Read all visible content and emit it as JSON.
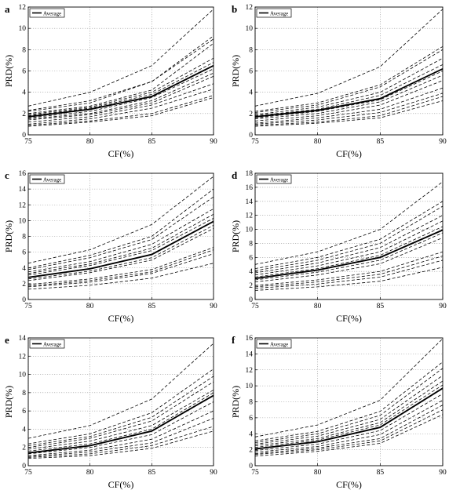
{
  "figure": {
    "panels": [
      {
        "panel_label": "a",
        "chart_data": {
          "type": "line",
          "title": "",
          "xlabel": "CF(%)",
          "ylabel": "PRD(%)",
          "x": [
            75,
            80,
            85,
            90
          ],
          "xticks": [
            "75",
            "80",
            "85",
            "90"
          ],
          "xlim": [
            75,
            90
          ],
          "ylim": [
            0,
            12
          ],
          "yticks": [
            "0",
            "2",
            "4",
            "6",
            "8",
            "10",
            "12"
          ],
          "grid": true,
          "legend": {
            "entries": [
              "Average"
            ],
            "placement": "top-left"
          },
          "average": {
            "name": "Average",
            "values": [
              1.7,
              2.4,
              3.6,
              6.5
            ]
          },
          "records": [
            {
              "values": [
                2.7,
                4.0,
                6.5,
                11.8
              ]
            },
            {
              "values": [
                2.3,
                3.2,
                5.0,
                9.3
              ]
            },
            {
              "values": [
                2.2,
                3.0,
                5.0,
                9.0
              ]
            },
            {
              "values": [
                2.0,
                2.7,
                4.2,
                8.6
              ]
            },
            {
              "values": [
                1.9,
                2.6,
                4.0,
                7.2
              ]
            },
            {
              "values": [
                1.8,
                2.5,
                3.8,
                6.8
              ]
            },
            {
              "values": [
                1.6,
                2.2,
                3.5,
                6.2
              ]
            },
            {
              "values": [
                1.5,
                2.0,
                3.2,
                5.8
              ]
            },
            {
              "values": [
                1.4,
                1.9,
                3.0,
                5.5
              ]
            },
            {
              "values": [
                1.2,
                1.7,
                2.8,
                4.8
              ]
            },
            {
              "values": [
                1.0,
                1.5,
                2.5,
                4.3
              ]
            },
            {
              "values": [
                0.9,
                1.3,
                2.0,
                3.7
              ]
            },
            {
              "values": [
                0.8,
                1.2,
                1.8,
                3.5
              ]
            }
          ]
        }
      },
      {
        "panel_label": "b",
        "chart_data": {
          "type": "line",
          "title": "",
          "xlabel": "CF(%)",
          "ylabel": "PRD(%)",
          "x": [
            75,
            80,
            85,
            90
          ],
          "xticks": [
            "75",
            "80",
            "85",
            "90"
          ],
          "xlim": [
            75,
            90
          ],
          "ylim": [
            0,
            12
          ],
          "yticks": [
            "0",
            "2",
            "4",
            "6",
            "8",
            "10",
            "12"
          ],
          "grid": true,
          "legend": {
            "entries": [
              "Average"
            ],
            "placement": "top-left"
          },
          "average": {
            "name": "Average",
            "values": [
              1.7,
              2.3,
              3.4,
              6.2
            ]
          },
          "records": [
            {
              "values": [
                2.7,
                3.9,
                6.4,
                11.8
              ]
            },
            {
              "values": [
                2.2,
                3.0,
                4.7,
                8.3
              ]
            },
            {
              "values": [
                2.1,
                2.8,
                4.5,
                8.0
              ]
            },
            {
              "values": [
                1.9,
                2.6,
                4.0,
                7.2
              ]
            },
            {
              "values": [
                1.8,
                2.4,
                3.7,
                6.6
              ]
            },
            {
              "values": [
                1.6,
                2.2,
                3.3,
                6.0
              ]
            },
            {
              "values": [
                1.5,
                2.0,
                3.1,
                5.6
              ]
            },
            {
              "values": [
                1.3,
                1.8,
                2.8,
                5.1
              ]
            },
            {
              "values": [
                1.1,
                1.6,
                2.4,
                4.4
              ]
            },
            {
              "values": [
                1.0,
                1.4,
                2.1,
                3.9
              ]
            },
            {
              "values": [
                0.9,
                1.2,
                1.8,
                3.6
              ]
            },
            {
              "values": [
                0.8,
                1.1,
                1.6,
                3.2
              ]
            }
          ]
        }
      },
      {
        "panel_label": "c",
        "chart_data": {
          "type": "line",
          "title": "",
          "xlabel": "CF(%)",
          "ylabel": "PRD(%)",
          "x": [
            75,
            80,
            85,
            90
          ],
          "xticks": [
            "75",
            "80",
            "85",
            "90"
          ],
          "xlim": [
            75,
            90
          ],
          "ylim": [
            0,
            16
          ],
          "yticks": [
            "0",
            "2",
            "4",
            "6",
            "8",
            "10",
            "12",
            "14",
            "16"
          ],
          "grid": true,
          "legend": {
            "entries": [
              "Average"
            ],
            "placement": "top-left"
          },
          "average": {
            "name": "Average",
            "values": [
              2.8,
              3.9,
              5.7,
              9.9
            ]
          },
          "records": [
            {
              "values": [
                4.6,
                6.3,
                9.5,
                15.6
              ]
            },
            {
              "values": [
                4.0,
                5.6,
                8.0,
                14.0
              ]
            },
            {
              "values": [
                3.8,
                5.3,
                7.6,
                13.0
              ]
            },
            {
              "values": [
                3.5,
                4.8,
                7.0,
                11.5
              ]
            },
            {
              "values": [
                3.3,
                4.5,
                6.5,
                10.8
              ]
            },
            {
              "values": [
                3.1,
                4.3,
                6.2,
                10.3
              ]
            },
            {
              "values": [
                2.6,
                3.6,
                5.3,
                9.4
              ]
            },
            {
              "values": [
                2.4,
                3.4,
                5.0,
                9.0
              ]
            },
            {
              "values": [
                1.9,
                2.6,
                3.8,
                6.6
              ]
            },
            {
              "values": [
                1.7,
                2.4,
                3.5,
                6.3
              ]
            },
            {
              "values": [
                1.6,
                2.2,
                3.3,
                5.8
              ]
            },
            {
              "values": [
                1.3,
                1.8,
                2.7,
                4.6
              ]
            }
          ]
        }
      },
      {
        "panel_label": "d",
        "chart_data": {
          "type": "line",
          "title": "",
          "xlabel": "CF(%)",
          "ylabel": "PRD(%)",
          "x": [
            75,
            80,
            85,
            90
          ],
          "xticks": [
            "75",
            "80",
            "85",
            "90"
          ],
          "xlim": [
            75,
            90
          ],
          "ylim": [
            0,
            18
          ],
          "yticks": [
            "0",
            "2",
            "4",
            "6",
            "8",
            "10",
            "12",
            "14",
            "16",
            "18"
          ],
          "grid": true,
          "legend": {
            "entries": [
              "Average"
            ],
            "placement": "top-left"
          },
          "average": {
            "name": "Average",
            "values": [
              3.0,
              4.2,
              6.0,
              9.9
            ]
          },
          "records": [
            {
              "values": [
                5.0,
                6.8,
                10.0,
                16.8
              ]
            },
            {
              "values": [
                4.4,
                6.0,
                8.6,
                14.0
              ]
            },
            {
              "values": [
                4.1,
                5.6,
                8.0,
                13.3
              ]
            },
            {
              "values": [
                3.8,
                5.2,
                7.4,
                12.0
              ]
            },
            {
              "values": [
                3.5,
                4.8,
                6.8,
                11.2
              ]
            },
            {
              "values": [
                3.2,
                4.4,
                6.3,
                10.4
              ]
            },
            {
              "values": [
                2.8,
                3.9,
                5.6,
                9.5
              ]
            },
            {
              "values": [
                2.5,
                3.5,
                5.1,
                8.8
              ]
            },
            {
              "values": [
                2.0,
                2.8,
                4.0,
                6.8
              ]
            },
            {
              "values": [
                1.8,
                2.5,
                3.6,
                6.2
              ]
            },
            {
              "values": [
                1.6,
                2.2,
                3.2,
                5.6
              ]
            },
            {
              "values": [
                1.3,
                1.8,
                2.6,
                4.6
              ]
            }
          ]
        }
      },
      {
        "panel_label": "e",
        "chart_data": {
          "type": "line",
          "title": "",
          "xlabel": "CF(%)",
          "ylabel": "PRD(%)",
          "x": [
            75,
            80,
            85,
            90
          ],
          "xticks": [
            "75",
            "80",
            "85",
            "90"
          ],
          "xlim": [
            75,
            90
          ],
          "ylim": [
            0,
            14
          ],
          "yticks": [
            "0",
            "2",
            "4",
            "6",
            "8",
            "10",
            "12",
            "14"
          ],
          "grid": true,
          "legend": {
            "entries": [
              "Average"
            ],
            "placement": "top-left"
          },
          "average": {
            "name": "Average",
            "values": [
              1.4,
              2.2,
              3.8,
              7.7
            ]
          },
          "records": [
            {
              "values": [
                3.0,
                4.4,
                7.3,
                13.4
              ]
            },
            {
              "values": [
                2.4,
                3.5,
                5.8,
                10.6
              ]
            },
            {
              "values": [
                2.2,
                3.2,
                5.3,
                9.8
              ]
            },
            {
              "values": [
                2.0,
                3.0,
                4.9,
                9.2
              ]
            },
            {
              "values": [
                1.8,
                2.7,
                4.4,
                8.3
              ]
            },
            {
              "values": [
                1.6,
                2.4,
                4.0,
                8.0
              ]
            },
            {
              "values": [
                1.3,
                2.0,
                3.4,
                7.0
              ]
            },
            {
              "values": [
                1.1,
                1.7,
                2.9,
                6.0
              ]
            },
            {
              "values": [
                1.0,
                1.5,
                2.5,
                5.2
              ]
            },
            {
              "values": [
                0.9,
                1.3,
                2.2,
                4.3
              ]
            },
            {
              "values": [
                0.8,
                1.1,
                1.9,
                3.8
              ]
            }
          ]
        }
      },
      {
        "panel_label": "f",
        "chart_data": {
          "type": "line",
          "title": "",
          "xlabel": "CF(%)",
          "ylabel": "PRD(%)",
          "x": [
            75,
            80,
            85,
            90
          ],
          "xticks": [
            "75",
            "80",
            "85",
            "90"
          ],
          "xlim": [
            75,
            90
          ],
          "ylim": [
            0,
            16
          ],
          "yticks": [
            "0",
            "2",
            "4",
            "6",
            "8",
            "10",
            "12",
            "14",
            "16"
          ],
          "grid": true,
          "legend": {
            "entries": [
              "Average"
            ],
            "placement": "top-left"
          },
          "average": {
            "name": "Average",
            "values": [
              2.1,
              3.0,
              4.8,
              9.7
            ]
          },
          "records": [
            {
              "values": [
                3.6,
                5.1,
                8.2,
                15.9
              ]
            },
            {
              "values": [
                3.1,
                4.3,
                6.8,
                13.0
              ]
            },
            {
              "values": [
                2.9,
                4.0,
                6.3,
                12.2
              ]
            },
            {
              "values": [
                2.7,
                3.7,
                5.8,
                11.3
              ]
            },
            {
              "values": [
                2.5,
                3.4,
                5.4,
                10.6
              ]
            },
            {
              "values": [
                2.3,
                3.2,
                5.1,
                10.1
              ]
            },
            {
              "values": [
                1.9,
                2.7,
                4.4,
                9.0
              ]
            },
            {
              "values": [
                1.7,
                2.4,
                3.9,
                8.2
              ]
            },
            {
              "values": [
                1.5,
                2.2,
                3.4,
                7.6
              ]
            },
            {
              "values": [
                1.4,
                2.0,
                3.1,
                7.0
              ]
            },
            {
              "values": [
                1.2,
                1.8,
                2.8,
                6.4
              ]
            }
          ]
        }
      }
    ]
  }
}
